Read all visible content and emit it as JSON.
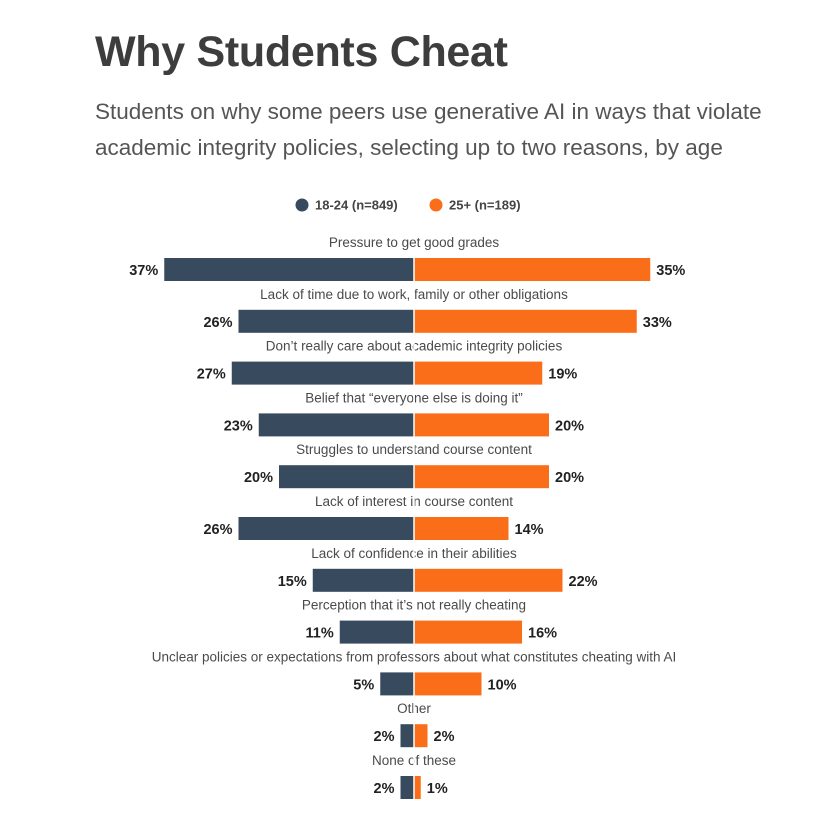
{
  "title": "Why Students Cheat",
  "subtitle": "Students on why some peers use generative AI in ways that violate academic integrity policies, selecting up to two reasons, by age",
  "colors": {
    "series_a": "#374a5e",
    "series_b": "#fb6e19",
    "text": "#3d3d3d"
  },
  "chart_data": {
    "type": "bar",
    "orientation": "diverging-horizontal",
    "legend_position": "top-center",
    "value_unit": "%",
    "categories": [
      "Pressure to get good grades",
      "Lack of time due to work, family or other obligations",
      "Don’t really care about academic integrity policies",
      "Belief that “everyone else is doing it”",
      "Struggles to understand course content",
      "Lack of interest in course content",
      "Lack of confidence in their abilities",
      "Perception that it’s not really cheating",
      "Unclear policies or expectations from professors about what constitutes cheating with AI",
      "Other",
      "None of these"
    ],
    "series": [
      {
        "name": "18-24 (n=849)",
        "values": [
          37,
          26,
          27,
          23,
          20,
          26,
          15,
          11,
          5,
          2,
          2
        ]
      },
      {
        "name": "25+ (n=189)",
        "values": [
          35,
          33,
          19,
          20,
          20,
          14,
          22,
          16,
          10,
          2,
          1
        ]
      }
    ]
  }
}
